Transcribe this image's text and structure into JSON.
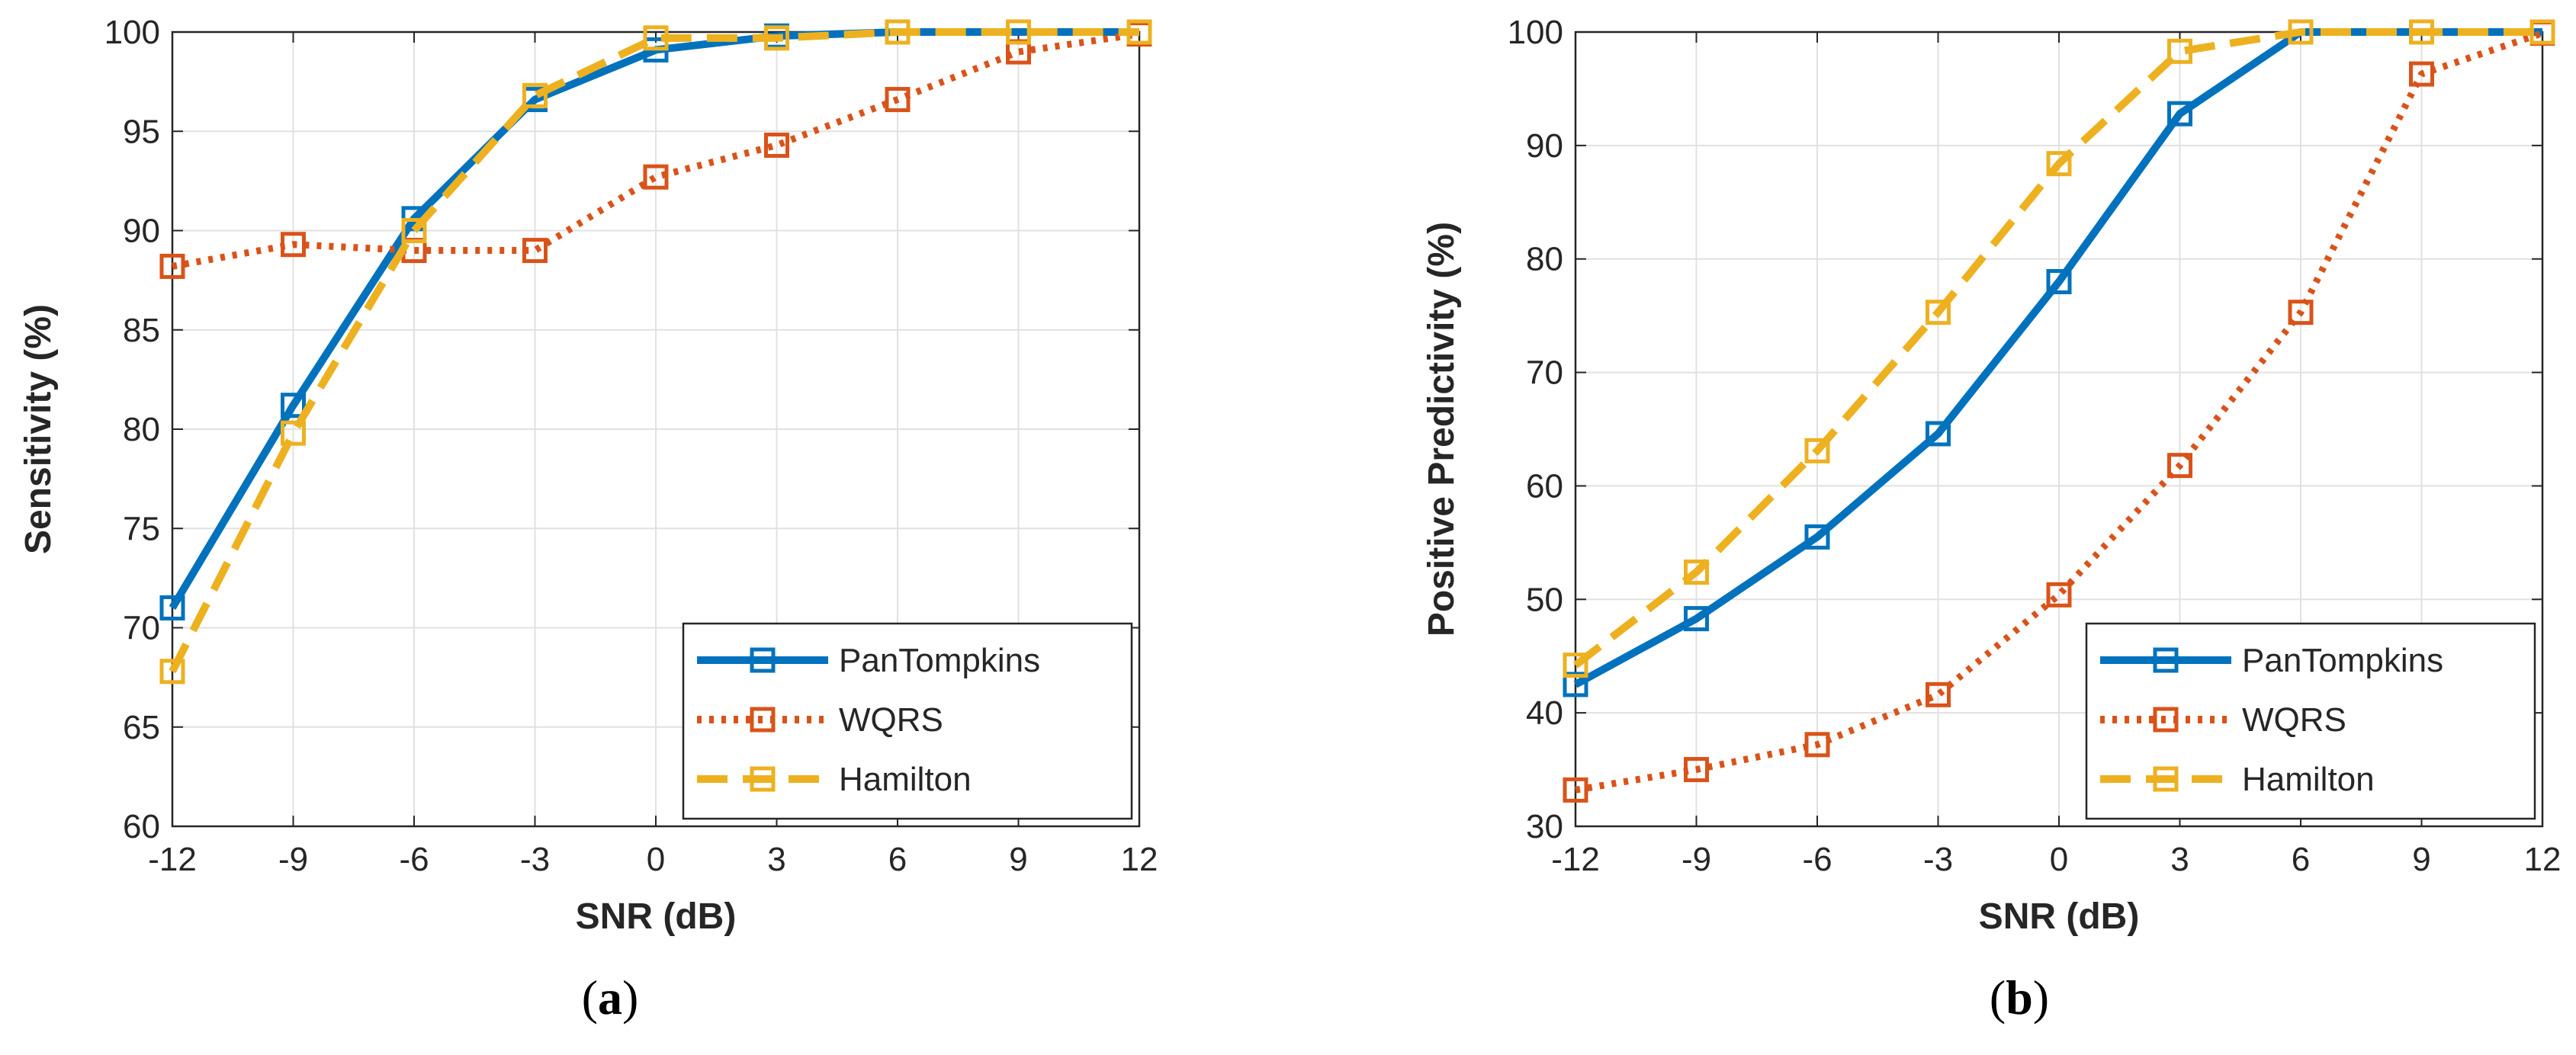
{
  "chart_data": [
    {
      "type": "line",
      "panel_label": "a",
      "caption_open": "(",
      "caption_close": ")",
      "title": "",
      "xlabel": "SNR (dB)",
      "ylabel": "Sensitivity (%)",
      "x": [
        -12,
        -9,
        -6,
        -3,
        0,
        3,
        6,
        9,
        12
      ],
      "xticks": [
        "-12",
        "-9",
        "-6",
        "-3",
        "0",
        "3",
        "6",
        "9",
        "12"
      ],
      "ylim": [
        60,
        100
      ],
      "yticks": [
        "60",
        "65",
        "70",
        "75",
        "80",
        "85",
        "90",
        "95",
        "100"
      ],
      "grid": true,
      "legend_position": "bottom-right",
      "series": [
        {
          "name": "PanTompkins",
          "color": "#0072BD",
          "style": "solid",
          "marker": "square",
          "values": [
            71.0,
            81.2,
            90.6,
            96.6,
            99.1,
            99.8,
            100,
            100,
            100
          ]
        },
        {
          "name": "WQRS",
          "color": "#D95319",
          "style": "dotted",
          "marker": "square",
          "values": [
            88.2,
            89.3,
            89.0,
            89.0,
            92.7,
            94.3,
            96.6,
            99.0,
            99.9
          ]
        },
        {
          "name": "Hamilton",
          "color": "#EDB120",
          "style": "dashed",
          "marker": "square",
          "values": [
            67.8,
            79.8,
            90.0,
            96.8,
            99.7,
            99.7,
            100,
            100,
            100
          ]
        }
      ]
    },
    {
      "type": "line",
      "panel_label": "b",
      "caption_open": "(",
      "caption_close": ")",
      "title": "",
      "xlabel": "SNR (dB)",
      "ylabel": "Positive Predictivity (%)",
      "x": [
        -12,
        -9,
        -6,
        -3,
        0,
        3,
        6,
        9,
        12
      ],
      "xticks": [
        "-12",
        "-9",
        "-6",
        "-3",
        "0",
        "3",
        "6",
        "9",
        "12"
      ],
      "ylim": [
        30,
        100
      ],
      "yticks": [
        "30",
        "40",
        "50",
        "60",
        "70",
        "80",
        "90",
        "100"
      ],
      "grid": true,
      "legend_position": "bottom-right",
      "series": [
        {
          "name": "PanTompkins",
          "color": "#0072BD",
          "style": "solid",
          "marker": "square",
          "values": [
            42.5,
            48.3,
            55.5,
            64.6,
            78.0,
            92.8,
            100,
            100,
            100
          ]
        },
        {
          "name": "WQRS",
          "color": "#D95319",
          "style": "dotted",
          "marker": "square",
          "values": [
            33.2,
            35.0,
            37.2,
            41.6,
            50.4,
            61.8,
            75.3,
            96.3,
            99.9
          ]
        },
        {
          "name": "Hamilton",
          "color": "#EDB120",
          "style": "dashed",
          "marker": "square",
          "values": [
            44.2,
            52.4,
            63.1,
            75.3,
            88.4,
            98.3,
            100,
            100,
            100
          ]
        }
      ]
    }
  ]
}
